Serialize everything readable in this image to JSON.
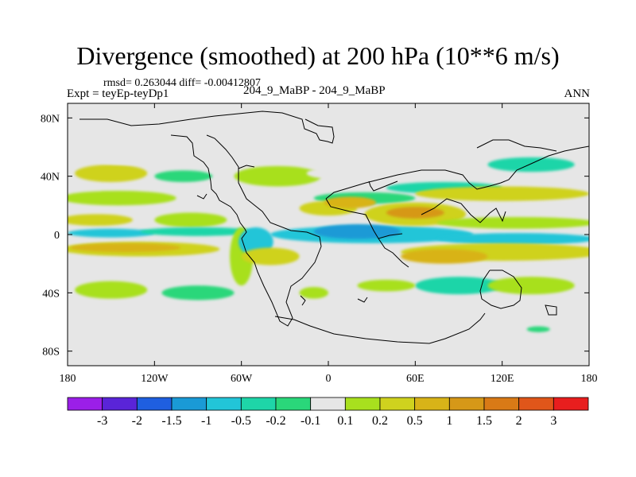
{
  "chart_data": {
    "type": "contour-map",
    "title": "Divergence (smoothed) at 200 hPa (10**6 m/s)",
    "subtitle_stats": "rmsd= 0.263044 diff= -0.00412807",
    "subtitle_left": "Expt = teyEp-teyDp1",
    "subtitle_center": "204_9_MaBP - 204_9_MaBP",
    "subtitle_right": "ANN",
    "xlim": [
      -180,
      180
    ],
    "ylim": [
      -90,
      90
    ],
    "x_ticks": [
      {
        "value": -180,
        "label": "180"
      },
      {
        "value": -120,
        "label": "120W"
      },
      {
        "value": -60,
        "label": "60W"
      },
      {
        "value": 0,
        "label": "0"
      },
      {
        "value": 60,
        "label": "60E"
      },
      {
        "value": 120,
        "label": "120E"
      },
      {
        "value": 180,
        "label": "180"
      }
    ],
    "y_ticks": [
      {
        "value": 80,
        "label": "80N"
      },
      {
        "value": 40,
        "label": "40N"
      },
      {
        "value": 0,
        "label": "0"
      },
      {
        "value": -40,
        "label": "40S"
      },
      {
        "value": -80,
        "label": "80S"
      }
    ],
    "colorbar": {
      "colors": [
        "#9b1fe8",
        "#5a24d8",
        "#1f5fe0",
        "#1a9ad6",
        "#22c5d8",
        "#1ed5a8",
        "#2ad77a",
        "#e6e6e6",
        "#a8e01e",
        "#cfd21e",
        "#d8b318",
        "#d69818",
        "#d97a16",
        "#e0561a",
        "#e81e1e"
      ],
      "labels": [
        "-3",
        "-2",
        "-1.5",
        "-1",
        "-0.5",
        "-0.2",
        "-0.1",
        "0.1",
        "0.2",
        "0.5",
        "1",
        "1.5",
        "2",
        "3"
      ]
    },
    "fields": [
      {
        "lon": -130,
        "lat": -10,
        "rx": 55,
        "ry": 5,
        "level": 9
      },
      {
        "lon": -140,
        "lat": -9,
        "rx": 38,
        "ry": 3,
        "level": 10
      },
      {
        "lon": -160,
        "lat": 10,
        "rx": 25,
        "ry": 4,
        "level": 9
      },
      {
        "lon": -95,
        "lat": 10,
        "rx": 25,
        "ry": 5,
        "level": 8
      },
      {
        "lon": -150,
        "lat": 1,
        "rx": 30,
        "ry": 3,
        "level": 4
      },
      {
        "lon": -90,
        "lat": 2,
        "rx": 40,
        "ry": 3,
        "level": 5
      },
      {
        "lon": -145,
        "lat": 25,
        "rx": 40,
        "ry": 5,
        "level": 8
      },
      {
        "lon": -150,
        "lat": 42,
        "rx": 25,
        "ry": 6,
        "level": 9
      },
      {
        "lon": -140,
        "lat": 52,
        "rx": 25,
        "ry": 4,
        "level": 7
      },
      {
        "lon": -100,
        "lat": 40,
        "rx": 20,
        "ry": 4,
        "level": 6
      },
      {
        "lon": -150,
        "lat": -38,
        "rx": 25,
        "ry": 6,
        "level": 8
      },
      {
        "lon": -90,
        "lat": -40,
        "rx": 25,
        "ry": 5,
        "level": 6
      },
      {
        "lon": -60,
        "lat": -15,
        "rx": 8,
        "ry": 20,
        "level": 8
      },
      {
        "lon": -50,
        "lat": -5,
        "rx": 12,
        "ry": 10,
        "level": 4
      },
      {
        "lon": -40,
        "lat": -15,
        "rx": 20,
        "ry": 6,
        "level": 9
      },
      {
        "lon": -35,
        "lat": 40,
        "rx": 30,
        "ry": 7,
        "level": 8
      },
      {
        "lon": 5,
        "lat": 42,
        "rx": 20,
        "ry": 4,
        "level": 7
      },
      {
        "lon": 25,
        "lat": 25,
        "rx": 35,
        "ry": 4,
        "level": 6
      },
      {
        "lon": 30,
        "lat": 0,
        "rx": 70,
        "ry": 6,
        "level": 4
      },
      {
        "lon": 20,
        "lat": 2,
        "rx": 30,
        "ry": 5,
        "level": 3
      },
      {
        "lon": 0,
        "lat": 18,
        "rx": 20,
        "ry": 5,
        "level": 9
      },
      {
        "lon": 15,
        "lat": 22,
        "rx": 18,
        "ry": 4,
        "level": 10
      },
      {
        "lon": 60,
        "lat": 14,
        "rx": 35,
        "ry": 8,
        "level": 9
      },
      {
        "lon": 60,
        "lat": 15,
        "rx": 20,
        "ry": 4,
        "level": 11
      },
      {
        "lon": 80,
        "lat": 32,
        "rx": 40,
        "ry": 4,
        "level": 5
      },
      {
        "lon": 120,
        "lat": 28,
        "rx": 60,
        "ry": 5,
        "level": 9
      },
      {
        "lon": 140,
        "lat": 48,
        "rx": 30,
        "ry": 5,
        "level": 5
      },
      {
        "lon": 130,
        "lat": 8,
        "rx": 55,
        "ry": 4,
        "level": 8
      },
      {
        "lon": 130,
        "lat": -3,
        "rx": 55,
        "ry": 4,
        "level": 4
      },
      {
        "lon": 120,
        "lat": -12,
        "rx": 70,
        "ry": 6,
        "level": 9
      },
      {
        "lon": 80,
        "lat": -15,
        "rx": 30,
        "ry": 5,
        "level": 10
      },
      {
        "lon": 90,
        "lat": -35,
        "rx": 30,
        "ry": 6,
        "level": 5
      },
      {
        "lon": 140,
        "lat": -35,
        "rx": 30,
        "ry": 6,
        "level": 8
      },
      {
        "lon": 145,
        "lat": -65,
        "rx": 8,
        "ry": 2,
        "level": 6
      },
      {
        "lon": 40,
        "lat": -35,
        "rx": 20,
        "ry": 4,
        "level": 8
      },
      {
        "lon": -10,
        "lat": -40,
        "rx": 10,
        "ry": 4,
        "level": 8
      }
    ]
  }
}
